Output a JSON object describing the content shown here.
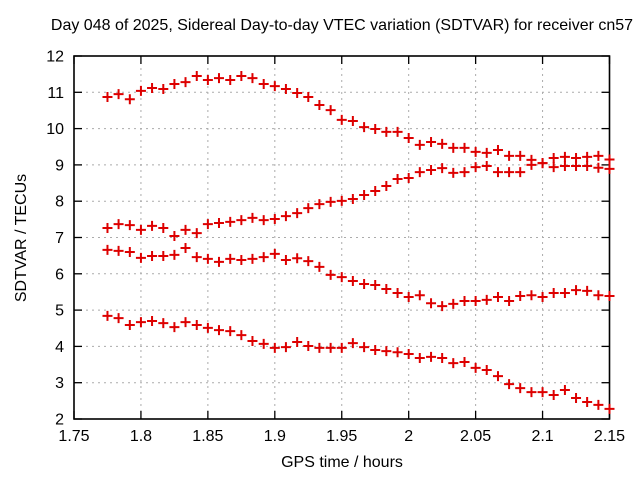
{
  "window": {
    "background": "#ffffff"
  },
  "chart_data": {
    "type": "scatter",
    "title": "Day 048 of 2025, Sidereal Day-to-day VTEC variation (SDTVAR) for receiver cn57",
    "xlabel": "GPS time / hours",
    "ylabel": "SDTVAR / TECUs",
    "xlim": [
      1.75,
      2.15
    ],
    "ylim": [
      2,
      12
    ],
    "xticks": [
      1.75,
      1.8,
      1.85,
      1.9,
      1.95,
      2.0,
      2.05,
      2.1,
      2.15
    ],
    "xtick_labels": [
      "1.75",
      "1.8",
      "1.85",
      "1.9",
      "1.95",
      "2",
      "2.05",
      "2.1",
      "2.15"
    ],
    "yticks": [
      2,
      3,
      4,
      5,
      6,
      7,
      8,
      9,
      10,
      11,
      12
    ],
    "ytick_labels": [
      "2",
      "3",
      "4",
      "5",
      "6",
      "7",
      "8",
      "9",
      "10",
      "11",
      "12"
    ],
    "grid": true,
    "legend": "none",
    "marker": {
      "shape": "plus",
      "color": "#dd0000",
      "size": 10,
      "stroke_width": 2
    },
    "grid_color": "#ababab",
    "border_color": "#000000",
    "x": [
      1.775,
      1.7833,
      1.7917,
      1.8,
      1.8083,
      1.8167,
      1.825,
      1.8333,
      1.8417,
      1.85,
      1.8583,
      1.8667,
      1.875,
      1.8833,
      1.8917,
      1.9,
      1.9083,
      1.9167,
      1.925,
      1.9333,
      1.9417,
      1.95,
      1.9583,
      1.9667,
      1.975,
      1.9833,
      1.9917,
      2.0,
      2.0083,
      2.0167,
      2.025,
      2.0333,
      2.0417,
      2.05,
      2.0583,
      2.0667,
      2.075,
      2.0833,
      2.0917,
      2.1,
      2.1083,
      2.1167,
      2.125,
      2.1333,
      2.1417,
      2.15
    ],
    "series": [
      {
        "name": "series-1",
        "values": [
          10.87,
          10.95,
          10.81,
          11.04,
          11.12,
          11.09,
          11.23,
          11.28,
          11.45,
          11.34,
          11.39,
          11.34,
          11.45,
          11.39,
          11.23,
          11.17,
          11.09,
          10.98,
          10.87,
          10.65,
          10.51,
          10.24,
          10.21,
          10.04,
          9.99,
          9.91,
          9.91,
          9.74,
          9.55,
          9.63,
          9.58,
          9.47,
          9.47,
          9.36,
          9.33,
          9.41,
          9.25,
          9.25,
          9.14,
          9.05,
          9.19,
          9.22,
          9.19,
          9.22,
          9.25,
          9.15
        ]
      },
      {
        "name": "series-2",
        "values": [
          7.26,
          7.37,
          7.34,
          7.21,
          7.32,
          7.26,
          7.04,
          7.21,
          7.12,
          7.37,
          7.4,
          7.43,
          7.48,
          7.54,
          7.48,
          7.51,
          7.59,
          7.67,
          7.81,
          7.92,
          7.98,
          8.01,
          8.06,
          8.17,
          8.28,
          8.42,
          8.61,
          8.64,
          8.8,
          8.86,
          8.91,
          8.78,
          8.8,
          8.94,
          8.97,
          8.8,
          8.8,
          8.8,
          9.0,
          9.05,
          8.94,
          8.97,
          8.97,
          8.97,
          8.92,
          8.89
        ]
      },
      {
        "name": "series-3",
        "values": [
          6.66,
          6.63,
          6.6,
          6.44,
          6.49,
          6.49,
          6.52,
          6.71,
          6.46,
          6.41,
          6.33,
          6.41,
          6.38,
          6.41,
          6.46,
          6.55,
          6.38,
          6.43,
          6.35,
          6.19,
          5.97,
          5.91,
          5.8,
          5.72,
          5.69,
          5.58,
          5.47,
          5.36,
          5.41,
          5.19,
          5.11,
          5.17,
          5.25,
          5.25,
          5.28,
          5.36,
          5.25,
          5.39,
          5.41,
          5.36,
          5.47,
          5.47,
          5.55,
          5.53,
          5.41,
          5.39
        ]
      },
      {
        "name": "series-4",
        "values": [
          4.84,
          4.78,
          4.59,
          4.67,
          4.7,
          4.64,
          4.53,
          4.67,
          4.59,
          4.51,
          4.45,
          4.42,
          4.31,
          4.15,
          4.07,
          3.96,
          3.98,
          4.12,
          4.01,
          3.96,
          3.96,
          3.96,
          4.09,
          3.98,
          3.9,
          3.87,
          3.84,
          3.79,
          3.68,
          3.71,
          3.68,
          3.54,
          3.57,
          3.41,
          3.35,
          3.18,
          2.96,
          2.85,
          2.74,
          2.74,
          2.66,
          2.8,
          2.58,
          2.47,
          2.39,
          2.28
        ]
      }
    ]
  }
}
